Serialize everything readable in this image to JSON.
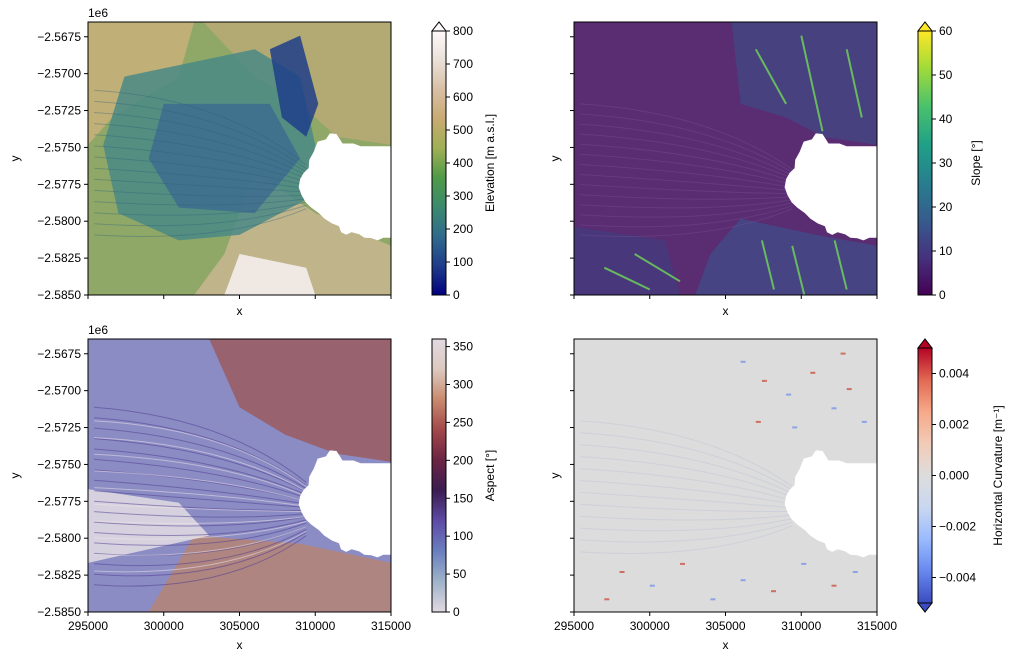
{
  "figure": {
    "offset_label": "1e6"
  },
  "chart_data": [
    {
      "type": "heatmap",
      "xlabel": "x",
      "ylabel": "y",
      "xlim": [
        295000,
        315000
      ],
      "ylim": [
        -2585000,
        -2566500
      ],
      "xticks": [
        "295000",
        "300000",
        "305000",
        "310000",
        "315000"
      ],
      "yticks": [
        "−2.5675",
        "−2.5700",
        "−2.5725",
        "−2.5750",
        "−2.5775",
        "−2.5800",
        "−2.5825",
        "−2.5850"
      ],
      "show_xtick_labels": false,
      "show_ytick_labels": true,
      "offset_label": "1e6",
      "colorbar": {
        "label": "Elevation [m a.s.l.]",
        "min": 0,
        "max": 800,
        "ticks": [
          "0",
          "100",
          "200",
          "300",
          "400",
          "500",
          "600",
          "700",
          "800"
        ],
        "extend": "max",
        "colormap": "gist_earth",
        "colors": [
          "#000080",
          "#1f3c8a",
          "#2f6b8c",
          "#3b8a6e",
          "#4f9a48",
          "#9fb055",
          "#c8aa72",
          "#d8bfa4",
          "#eae0d8",
          "#fdfafa"
        ]
      }
    },
    {
      "type": "heatmap",
      "xlabel": "x",
      "ylabel": "y",
      "xlim": [
        295000,
        315000
      ],
      "ylim": [
        -2585000,
        -2566500
      ],
      "xticks": [
        "295000",
        "300000",
        "305000",
        "310000",
        "315000"
      ],
      "yticks": [
        "−2.5675",
        "−2.5700",
        "−2.5725",
        "−2.5750",
        "−2.5775",
        "−2.5800",
        "−2.5825",
        "−2.5850"
      ],
      "show_xtick_labels": false,
      "show_ytick_labels": false,
      "offset_label": "",
      "colorbar": {
        "label": "Slope [°]",
        "min": 0,
        "max": 60,
        "ticks": [
          "0",
          "10",
          "20",
          "30",
          "40",
          "50",
          "60"
        ],
        "extend": "max",
        "colormap": "viridis",
        "colors": [
          "#440154",
          "#46327e",
          "#365c8d",
          "#277f8e",
          "#1fa187",
          "#4ac16d",
          "#9fda3a",
          "#fde725"
        ]
      }
    },
    {
      "type": "heatmap",
      "xlabel": "x",
      "ylabel": "y",
      "xlim": [
        295000,
        315000
      ],
      "ylim": [
        -2585000,
        -2566500
      ],
      "xticks": [
        "295000",
        "300000",
        "305000",
        "310000",
        "315000"
      ],
      "yticks": [
        "−2.5675",
        "−2.5700",
        "−2.5725",
        "−2.5750",
        "−2.5775",
        "−2.5800",
        "−2.5825",
        "−2.5850"
      ],
      "show_xtick_labels": true,
      "show_ytick_labels": true,
      "offset_label": "1e6",
      "colorbar": {
        "label": "Aspect [°]",
        "min": 0,
        "max": 360,
        "ticks": [
          "0",
          "50",
          "100",
          "150",
          "200",
          "250",
          "300",
          "350"
        ],
        "extend": "neither",
        "colormap": "twilight",
        "colors": [
          "#e2d9e2",
          "#9fb3c9",
          "#6a7fbf",
          "#5e4ba6",
          "#3b1c52",
          "#6b2443",
          "#a2484a",
          "#c98a6e",
          "#ddc9bf",
          "#e2d9e2"
        ]
      }
    },
    {
      "type": "heatmap",
      "xlabel": "x",
      "ylabel": "y",
      "xlim": [
        295000,
        315000
      ],
      "ylim": [
        -2585000,
        -2566500
      ],
      "xticks": [
        "295000",
        "300000",
        "305000",
        "310000",
        "315000"
      ],
      "yticks": [
        "−2.5675",
        "−2.5700",
        "−2.5725",
        "−2.5750",
        "−2.5775",
        "−2.5800",
        "−2.5825",
        "−2.5850"
      ],
      "show_xtick_labels": true,
      "show_ytick_labels": false,
      "offset_label": "",
      "colorbar": {
        "label": "Horizontal Curvature [m⁻¹]",
        "min": -0.005,
        "max": 0.005,
        "ticks": [
          "−0.004",
          "−0.002",
          "0.000",
          "0.002",
          "0.004"
        ],
        "tick_values": [
          -0.004,
          -0.002,
          0.0,
          0.002,
          0.004
        ],
        "extend": "both",
        "colormap": "coolwarm",
        "colors": [
          "#3b4cc0",
          "#6788ee",
          "#9abbff",
          "#c9d7f0",
          "#dddddd",
          "#f2cbb7",
          "#f7a889",
          "#e26952",
          "#b40426"
        ]
      }
    }
  ]
}
